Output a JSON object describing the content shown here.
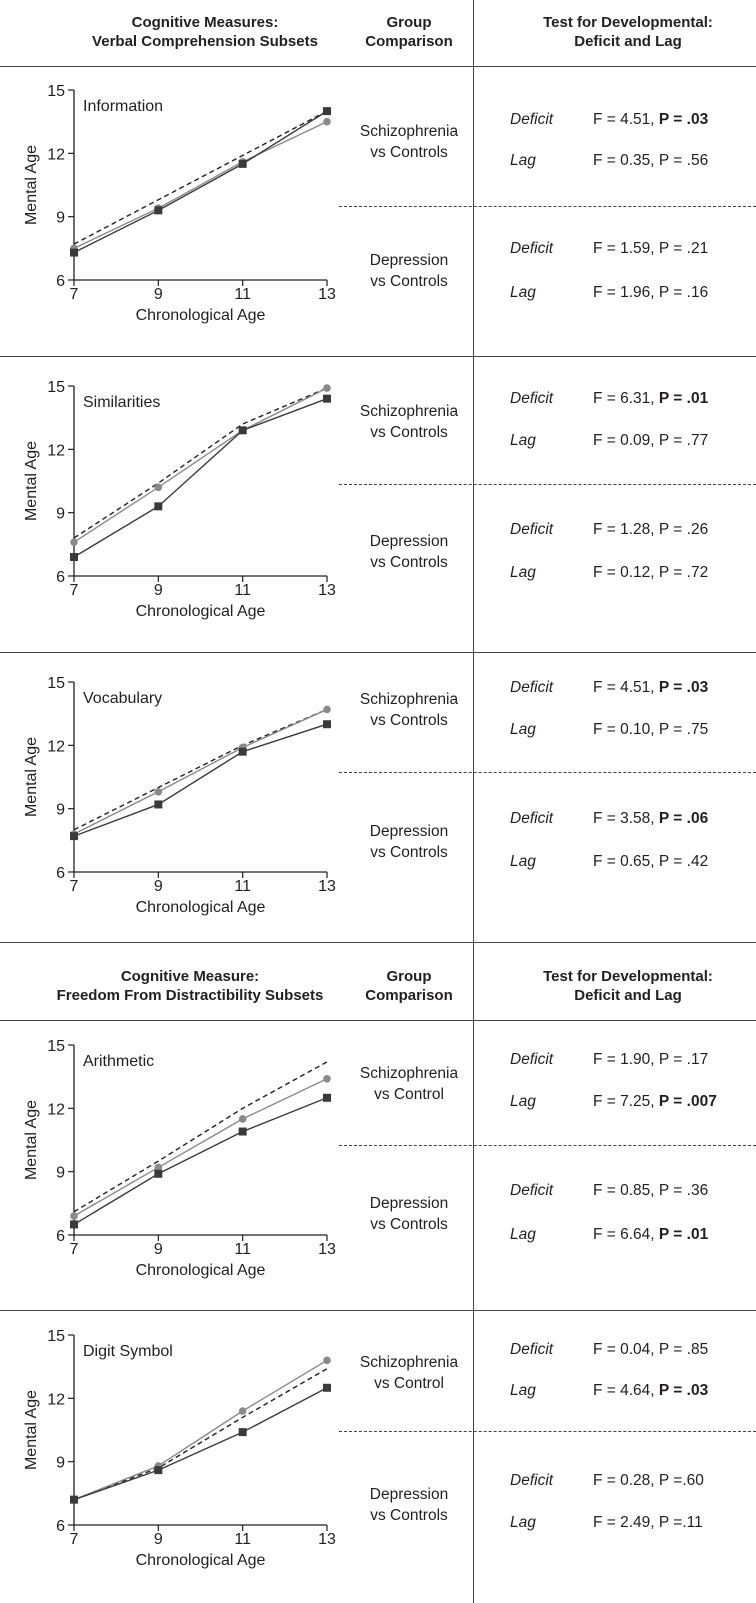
{
  "sections": [
    {
      "header": {
        "measure_line1": "Cognitive Measures:",
        "measure_line2": "Verbal Comprehension Subsets",
        "group_line1": "Group",
        "group_line2": "Comparison",
        "test_line1": "Test for Developmental:",
        "test_line2": "Deficit and Lag"
      }
    },
    {
      "header": {
        "measure_line1": "Cognitive Measure:",
        "measure_line2": "Freedom From Distractibility Subsets",
        "group_line1": "Group",
        "group_line2": "Comparison",
        "test_line1": "Test for Developmental:",
        "test_line2": "Deficit and Lag"
      }
    }
  ],
  "rows": [
    {
      "comparisons": [
        {
          "group_line1": "Schizophrenia",
          "group_line2": "vs Controls",
          "deficit_label": "Deficit",
          "deficit_f": "F = 4.51, ",
          "deficit_p": "P = .03",
          "deficit_bold": true,
          "lag_label": "Lag",
          "lag_f": "F = 0.35, ",
          "lag_p": "P = .56",
          "lag_bold": false
        },
        {
          "group_line1": "Depression",
          "group_line2": "vs Controls",
          "deficit_label": "Deficit",
          "deficit_f": "F = 1.59, ",
          "deficit_p": "P = .21",
          "deficit_bold": false,
          "lag_label": "Lag",
          "lag_f": "F = 1.96, ",
          "lag_p": "P = .16",
          "lag_bold": false
        }
      ]
    },
    {
      "comparisons": [
        {
          "group_line1": "Schizophrenia",
          "group_line2": "vs Controls",
          "deficit_label": "Deficit",
          "deficit_f": "F = 6.31, ",
          "deficit_p": "P = .01",
          "deficit_bold": true,
          "lag_label": "Lag",
          "lag_f": "F = 0.09, ",
          "lag_p": "P = .77",
          "lag_bold": false
        },
        {
          "group_line1": "Depression",
          "group_line2": "vs Controls",
          "deficit_label": "Deficit",
          "deficit_f": "F = 1.28, ",
          "deficit_p": "P = .26",
          "deficit_bold": false,
          "lag_label": "Lag",
          "lag_f": "F = 0.12, ",
          "lag_p": "P = .72",
          "lag_bold": false
        }
      ]
    },
    {
      "comparisons": [
        {
          "group_line1": "Schizophrenia",
          "group_line2": "vs Controls",
          "deficit_label": "Deficit",
          "deficit_f": "F = 4.51, ",
          "deficit_p": "P = .03",
          "deficit_bold": true,
          "lag_label": "Lag",
          "lag_f": "F = 0.10, ",
          "lag_p": "P = .75",
          "lag_bold": false
        },
        {
          "group_line1": "Depression",
          "group_line2": "vs Controls",
          "deficit_label": "Deficit",
          "deficit_f": "F = 3.58, ",
          "deficit_p": "P = .06",
          "deficit_bold": true,
          "lag_label": "Lag",
          "lag_f": "F = 0.65, ",
          "lag_p": "P = .42",
          "lag_bold": false
        }
      ]
    },
    {
      "comparisons": [
        {
          "group_line1": "Schizophrenia",
          "group_line2": "vs Control",
          "deficit_label": "Deficit",
          "deficit_f": "F = 1.90, ",
          "deficit_p": "P = .17",
          "deficit_bold": false,
          "lag_label": "Lag",
          "lag_f": "F = 7.25, ",
          "lag_p": "P = .007",
          "lag_bold": true
        },
        {
          "group_line1": "Depression",
          "group_line2": "vs Controls",
          "deficit_label": "Deficit",
          "deficit_f": "F = 0.85, ",
          "deficit_p": "P = .36",
          "deficit_bold": false,
          "lag_label": "Lag",
          "lag_f": "F = 6.64, ",
          "lag_p": "P = .01",
          "lag_bold": true
        }
      ]
    },
    {
      "comparisons": [
        {
          "group_line1": "Schizophrenia",
          "group_line2": "vs Control",
          "deficit_label": "Deficit",
          "deficit_f": "F = 0.04, ",
          "deficit_p": "P = .85",
          "deficit_bold": false,
          "lag_label": "Lag",
          "lag_f": "F = 4.64, ",
          "lag_p": "P = .03",
          "lag_bold": true
        },
        {
          "group_line1": "Depression",
          "group_line2": "vs Controls",
          "deficit_label": "Deficit",
          "deficit_f": "F = 0.28, ",
          "deficit_p": "P =.60",
          "deficit_bold": false,
          "lag_label": "Lag",
          "lag_f": "F = 2.49, ",
          "lag_p": "P =.11",
          "lag_bold": false
        }
      ]
    }
  ],
  "colors": {
    "dark_series": "#3a3a3a",
    "gray_series": "#8a8a8a",
    "reference": "#222222",
    "rule": "#444444"
  },
  "chart_data": [
    {
      "type": "line",
      "title": "Information",
      "xlabel": "Chronological Age",
      "ylabel": "Mental Age",
      "x": [
        7,
        9,
        11,
        13
      ],
      "xlim": [
        7,
        13
      ],
      "ylim": [
        6,
        15
      ],
      "xticks": [
        7,
        9,
        11,
        13
      ],
      "yticks": [
        6,
        9,
        12,
        15
      ],
      "series": [
        {
          "marker": "square",
          "style": "solid",
          "color": "#3a3a3a",
          "values": [
            7.3,
            9.3,
            11.5,
            14.0
          ]
        },
        {
          "marker": "circle",
          "style": "solid",
          "color": "#8a8a8a",
          "values": [
            7.5,
            9.4,
            11.6,
            13.5
          ]
        },
        {
          "marker": "none",
          "style": "dashed",
          "color": "#222222",
          "values": [
            7.7,
            9.8,
            11.9,
            14.0
          ]
        }
      ]
    },
    {
      "type": "line",
      "title": "Similarities",
      "xlabel": "Chronological Age",
      "ylabel": "Mental Age",
      "x": [
        7,
        9,
        11,
        13
      ],
      "xlim": [
        7,
        13
      ],
      "ylim": [
        6,
        15
      ],
      "xticks": [
        7,
        9,
        11,
        13
      ],
      "yticks": [
        6,
        9,
        12,
        15
      ],
      "series": [
        {
          "marker": "square",
          "style": "solid",
          "color": "#3a3a3a",
          "values": [
            6.9,
            9.3,
            12.9,
            14.4
          ]
        },
        {
          "marker": "circle",
          "style": "solid",
          "color": "#8a8a8a",
          "values": [
            7.6,
            10.2,
            12.9,
            14.9
          ]
        },
        {
          "marker": "none",
          "style": "dashed",
          "color": "#222222",
          "values": [
            7.8,
            10.4,
            13.2,
            14.9
          ]
        }
      ]
    },
    {
      "type": "line",
      "title": "Vocabulary",
      "xlabel": "Chronological Age",
      "ylabel": "Mental Age",
      "x": [
        7,
        9,
        11,
        13
      ],
      "xlim": [
        7,
        13
      ],
      "ylim": [
        6,
        15
      ],
      "xticks": [
        7,
        9,
        11,
        13
      ],
      "yticks": [
        6,
        9,
        12,
        15
      ],
      "series": [
        {
          "marker": "square",
          "style": "solid",
          "color": "#3a3a3a",
          "values": [
            7.7,
            9.2,
            11.7,
            13.0
          ]
        },
        {
          "marker": "circle",
          "style": "solid",
          "color": "#8a8a8a",
          "values": [
            7.8,
            9.8,
            11.9,
            13.7
          ]
        },
        {
          "marker": "none",
          "style": "dashed",
          "color": "#222222",
          "values": [
            8.0,
            10.0,
            12.0,
            13.7
          ]
        }
      ]
    },
    {
      "type": "line",
      "title": "Arithmetic",
      "xlabel": "Chronological Age",
      "ylabel": "Mental Age",
      "x": [
        7,
        9,
        11,
        13
      ],
      "xlim": [
        7,
        13
      ],
      "ylim": [
        6,
        15
      ],
      "xticks": [
        7,
        9,
        11,
        13
      ],
      "yticks": [
        6,
        9,
        12,
        15
      ],
      "series": [
        {
          "marker": "square",
          "style": "solid",
          "color": "#3a3a3a",
          "values": [
            6.5,
            8.9,
            10.9,
            12.5
          ]
        },
        {
          "marker": "circle",
          "style": "solid",
          "color": "#8a8a8a",
          "values": [
            6.9,
            9.2,
            11.5,
            13.4
          ]
        },
        {
          "marker": "none",
          "style": "dashed",
          "color": "#222222",
          "values": [
            7.1,
            9.5,
            12.0,
            14.2
          ]
        }
      ]
    },
    {
      "type": "line",
      "title": "Digit Symbol",
      "xlabel": "Chronological Age",
      "ylabel": "Mental Age",
      "x": [
        7,
        9,
        11,
        13
      ],
      "xlim": [
        7,
        13
      ],
      "ylim": [
        6,
        15
      ],
      "xticks": [
        7,
        9,
        11,
        13
      ],
      "yticks": [
        6,
        9,
        12,
        15
      ],
      "series": [
        {
          "marker": "square",
          "style": "solid",
          "color": "#3a3a3a",
          "values": [
            7.2,
            8.6,
            10.4,
            12.5
          ]
        },
        {
          "marker": "circle",
          "style": "solid",
          "color": "#8a8a8a",
          "values": [
            7.2,
            8.8,
            11.4,
            13.8
          ]
        },
        {
          "marker": "none",
          "style": "dashed",
          "color": "#222222",
          "values": [
            7.2,
            8.7,
            11.1,
            13.4
          ]
        }
      ]
    }
  ]
}
